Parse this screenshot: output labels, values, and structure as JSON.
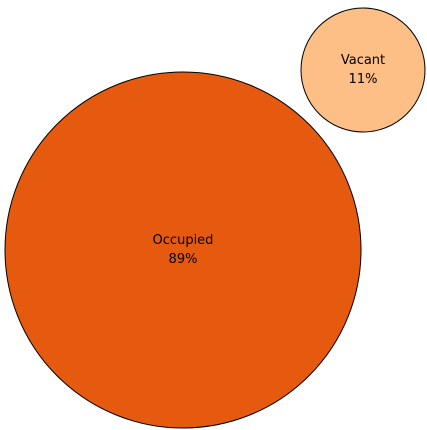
{
  "chart_data": {
    "type": "bubble",
    "title": "",
    "grid": false,
    "legend": "none",
    "series": [
      {
        "name": "Occupied",
        "value": 89,
        "value_label": "89%",
        "color": "#e65a10"
      },
      {
        "name": "Vacant",
        "value": 11,
        "value_label": "11%",
        "color": "#fdbf85"
      }
    ]
  }
}
